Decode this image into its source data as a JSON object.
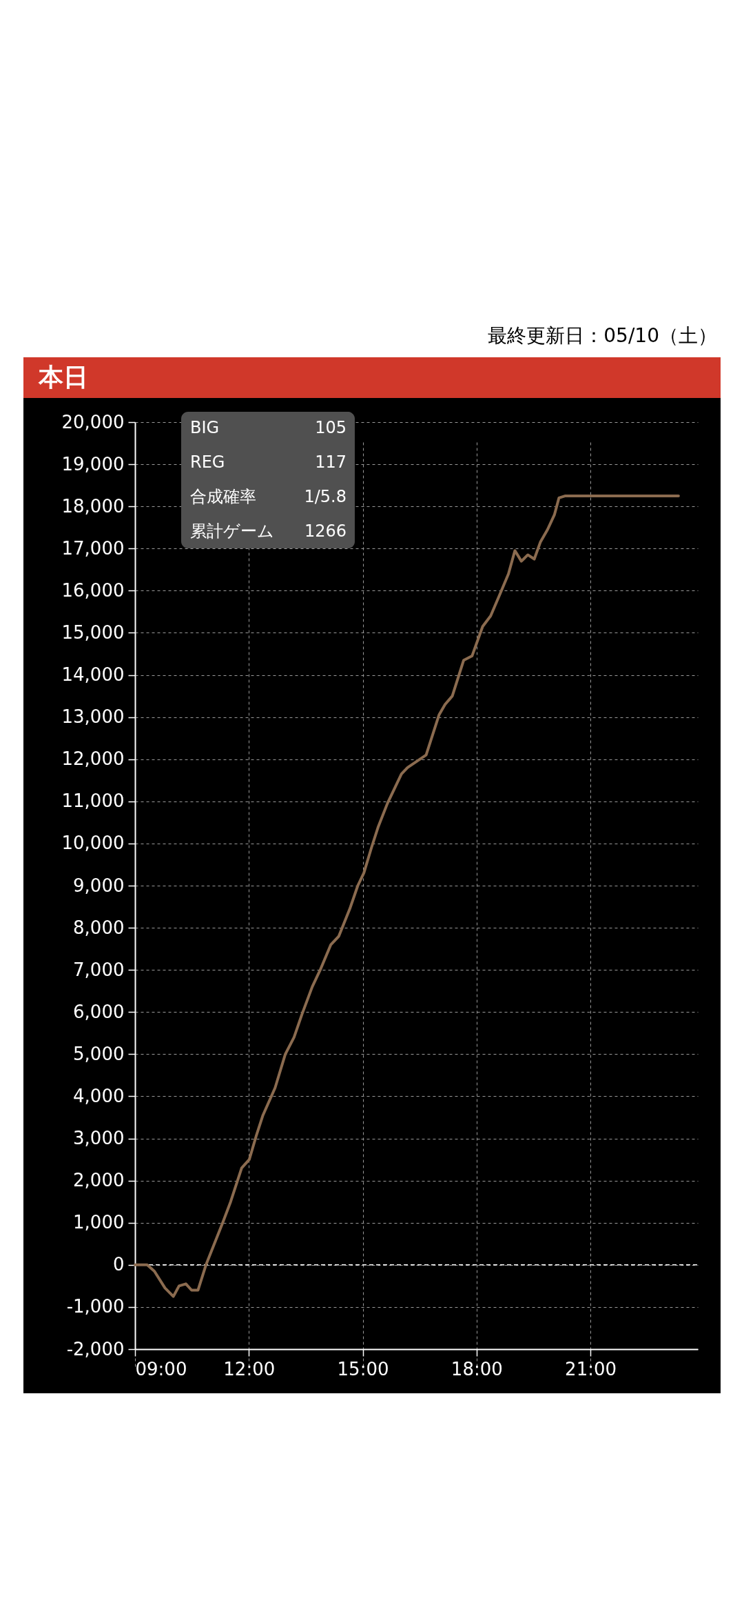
{
  "chart_data": {
    "type": "line",
    "title": "本日",
    "subtitle": "最終更新日：05/10（土）",
    "annotations": [
      "BIG",
      "105",
      "REG",
      "117",
      "合成確率",
      "1/5.8",
      "累計ゲーム",
      "1266"
    ],
    "x": [
      9.0,
      9.32,
      9.51,
      9.79,
      10.01,
      10.16,
      10.34,
      10.49,
      10.66,
      10.87,
      11.31,
      11.52,
      11.81,
      12.01,
      12.19,
      12.37,
      12.69,
      12.96,
      13.19,
      13.4,
      13.67,
      13.88,
      14.16,
      14.37,
      14.66,
      14.87,
      15.03,
      15.23,
      15.41,
      15.65,
      16.02,
      16.18,
      16.67,
      17.01,
      17.17,
      17.36,
      17.66,
      17.88,
      18.16,
      18.37,
      18.63,
      18.84,
      19.01,
      19.18,
      19.35,
      19.52,
      19.68,
      19.87,
      20.05,
      20.17,
      20.34,
      23.32
    ],
    "series": [
      {
        "color": "#8b6b4f",
        "values": [
          0,
          0,
          -150,
          -550,
          -750,
          -500,
          -450,
          -600,
          -600,
          0,
          1000,
          1500,
          2300,
          2500,
          3050,
          3550,
          4200,
          5000,
          5400,
          5950,
          6600,
          7000,
          7600,
          7800,
          8450,
          9000,
          9300,
          9900,
          10400,
          10950,
          11650,
          11800,
          12100,
          13050,
          13300,
          13500,
          14350,
          14450,
          15150,
          15400,
          15950,
          16400,
          16950,
          16700,
          16850,
          16750,
          17150,
          17450,
          17800,
          18200,
          18250,
          18250
        ]
      }
    ],
    "xlim": [
      9,
      23.83
    ],
    "xticks": [
      {
        "value": 9,
        "label": "09:00"
      },
      {
        "value": 12,
        "label": "12:00"
      },
      {
        "value": 15,
        "label": "15:00"
      },
      {
        "value": 18,
        "label": "18:00"
      },
      {
        "value": 21,
        "label": "21:00"
      }
    ],
    "ylim": [
      -2000,
      20000
    ],
    "yticks": [
      {
        "value": -2000,
        "label": "-2,000"
      },
      {
        "value": -1000,
        "label": "-1,000"
      },
      0,
      {
        "value": 1000,
        "label": "1,000"
      },
      {
        "value": 2000,
        "label": "2,000"
      },
      {
        "value": 3000,
        "label": "3,000"
      },
      {
        "value": 4000,
        "label": "4,000"
      },
      {
        "value": 5000,
        "label": "5,000"
      },
      {
        "value": 6000,
        "label": "6,000"
      },
      {
        "value": 7000,
        "label": "7,000"
      },
      {
        "value": 8000,
        "label": "8,000"
      },
      {
        "value": 9000,
        "label": "9,000"
      },
      {
        "value": 10000,
        "label": "10,000"
      },
      {
        "value": 11000,
        "label": "11,000"
      },
      {
        "value": 12000,
        "label": "12,000"
      },
      {
        "value": 13000,
        "label": "13,000"
      },
      {
        "value": 14000,
        "label": "14,000"
      },
      {
        "value": 15000,
        "label": "15,000"
      },
      {
        "value": 16000,
        "label": "16,000"
      },
      {
        "value": 17000,
        "label": "17,000"
      },
      {
        "value": 18000,
        "label": "18,000"
      },
      {
        "value": 19000,
        "label": "19,000"
      },
      {
        "value": 20000,
        "label": "20,000"
      }
    ],
    "grid": true,
    "ref_lines": [
      {
        "axis": "y",
        "value": 0,
        "color": "#ffffff",
        "line_style": "dashed"
      }
    ]
  }
}
